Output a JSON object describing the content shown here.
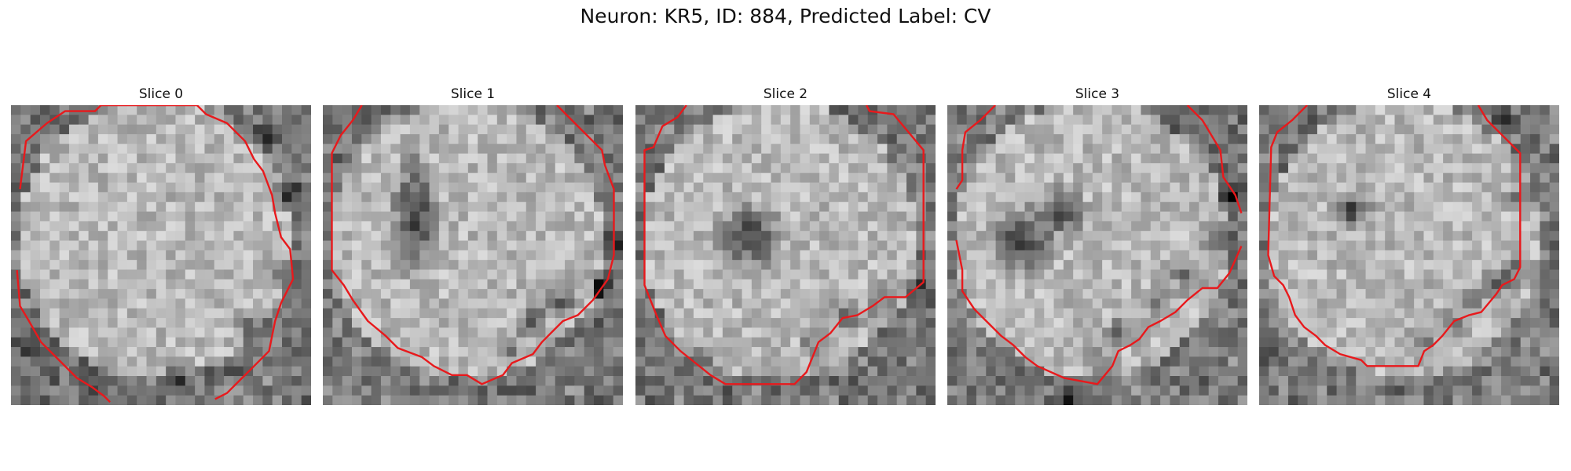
{
  "figure": {
    "title": "Neuron: KR5, ID: 884, Predicted Label: CV",
    "contour_color": "#e8191c"
  },
  "panels": [
    {
      "title": "Slice 0",
      "seed": 11
    },
    {
      "title": "Slice 1",
      "seed": 23
    },
    {
      "title": "Slice 2",
      "seed": 37
    },
    {
      "title": "Slice 3",
      "seed": 53
    },
    {
      "title": "Slice 4",
      "seed": 71
    }
  ]
}
